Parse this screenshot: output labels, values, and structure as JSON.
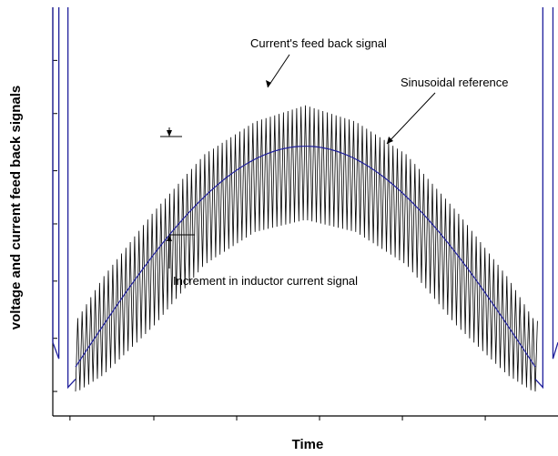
{
  "chart_data": {
    "type": "line",
    "xlabel": "Time",
    "ylabel": "voltage and current feed back signals",
    "x_ticks_labels": [],
    "y_ticks_labels": [],
    "xlim": [
      0,
      1
    ],
    "ylim": [
      0,
      1
    ],
    "grid": false,
    "legend": "none",
    "series": [
      {
        "name": "Sinusoidal reference",
        "color": "#1f1f9c",
        "x": [
          0.0,
          0.05,
          0.1,
          0.2,
          0.3,
          0.4,
          0.5,
          0.6,
          0.7,
          0.8,
          0.9,
          0.95,
          1.0
        ],
        "y": [
          0.18,
          0.2,
          0.28,
          0.42,
          0.55,
          0.63,
          0.66,
          0.63,
          0.55,
          0.42,
          0.28,
          0.2,
          0.18
        ]
      },
      {
        "name": "Current's feed back signal",
        "color": "#000000",
        "x": [
          0.0,
          0.05,
          0.1,
          0.2,
          0.3,
          0.4,
          0.5,
          0.6,
          0.7,
          0.8,
          0.9,
          0.95,
          1.0
        ],
        "y_upper": [
          0.2,
          0.24,
          0.34,
          0.5,
          0.64,
          0.72,
          0.76,
          0.72,
          0.64,
          0.5,
          0.34,
          0.24,
          0.2
        ],
        "y_lower": [
          0.06,
          0.06,
          0.1,
          0.22,
          0.37,
          0.45,
          0.48,
          0.45,
          0.37,
          0.22,
          0.1,
          0.06,
          0.06
        ]
      }
    ],
    "annotations": [
      {
        "text": "Current's feed back signal"
      },
      {
        "text": "Sinusoidal reference"
      },
      {
        "text": "Increment in inductor current signal"
      }
    ]
  }
}
